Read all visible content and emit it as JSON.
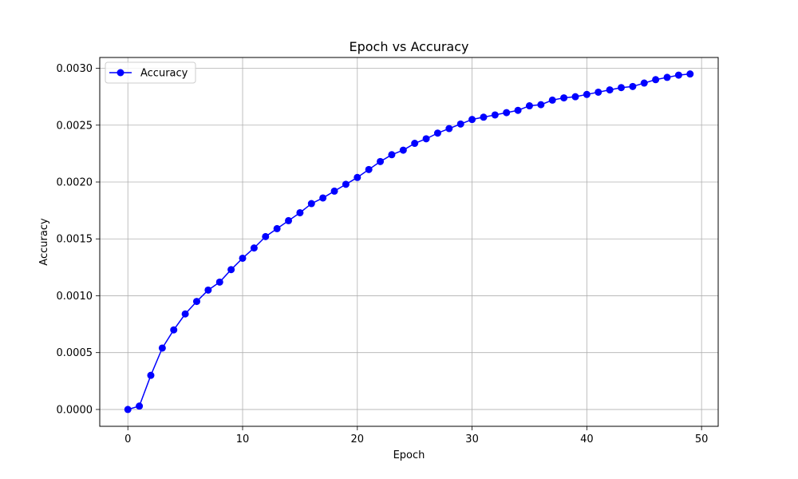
{
  "chart_data": {
    "type": "line",
    "title": "Epoch vs Accuracy",
    "xlabel": "Epoch",
    "ylabel": "Accuracy",
    "xlim": [
      -2.45,
      51.45
    ],
    "ylim": [
      -0.000148,
      0.003095
    ],
    "xticks": [
      0,
      10,
      20,
      30,
      40,
      50
    ],
    "xtick_labels": [
      "0",
      "10",
      "20",
      "30",
      "40",
      "50"
    ],
    "yticks": [
      0.0,
      0.0005,
      0.001,
      0.0015,
      0.002,
      0.0025,
      0.003
    ],
    "ytick_labels": [
      "0.0000",
      "0.0005",
      "0.0010",
      "0.0015",
      "0.0020",
      "0.0025",
      "0.0030"
    ],
    "grid": true,
    "legend": "upper left",
    "series": [
      {
        "name": "Accuracy",
        "color": "#0000ff",
        "marker": "circle",
        "x": [
          0,
          1,
          2,
          3,
          4,
          5,
          6,
          7,
          8,
          9,
          10,
          11,
          12,
          13,
          14,
          15,
          16,
          17,
          18,
          19,
          20,
          21,
          22,
          23,
          24,
          25,
          26,
          27,
          28,
          29,
          30,
          31,
          32,
          33,
          34,
          35,
          36,
          37,
          38,
          39,
          40,
          41,
          42,
          43,
          44,
          45,
          46,
          47,
          48,
          49
        ],
        "values": [
          0.0,
          3e-05,
          0.0003,
          0.00054,
          0.0007,
          0.00084,
          0.00095,
          0.00105,
          0.00112,
          0.00123,
          0.00133,
          0.00142,
          0.00152,
          0.00159,
          0.00166,
          0.00173,
          0.00181,
          0.00186,
          0.00192,
          0.00198,
          0.00204,
          0.00211,
          0.00218,
          0.00224,
          0.00228,
          0.00234,
          0.00238,
          0.00243,
          0.00247,
          0.00251,
          0.00255,
          0.00257,
          0.00259,
          0.00261,
          0.00263,
          0.00267,
          0.00268,
          0.00272,
          0.00274,
          0.00275,
          0.00277,
          0.00279,
          0.00281,
          0.00283,
          0.00284,
          0.00287,
          0.0029,
          0.00292,
          0.00294,
          0.00295
        ]
      }
    ]
  }
}
